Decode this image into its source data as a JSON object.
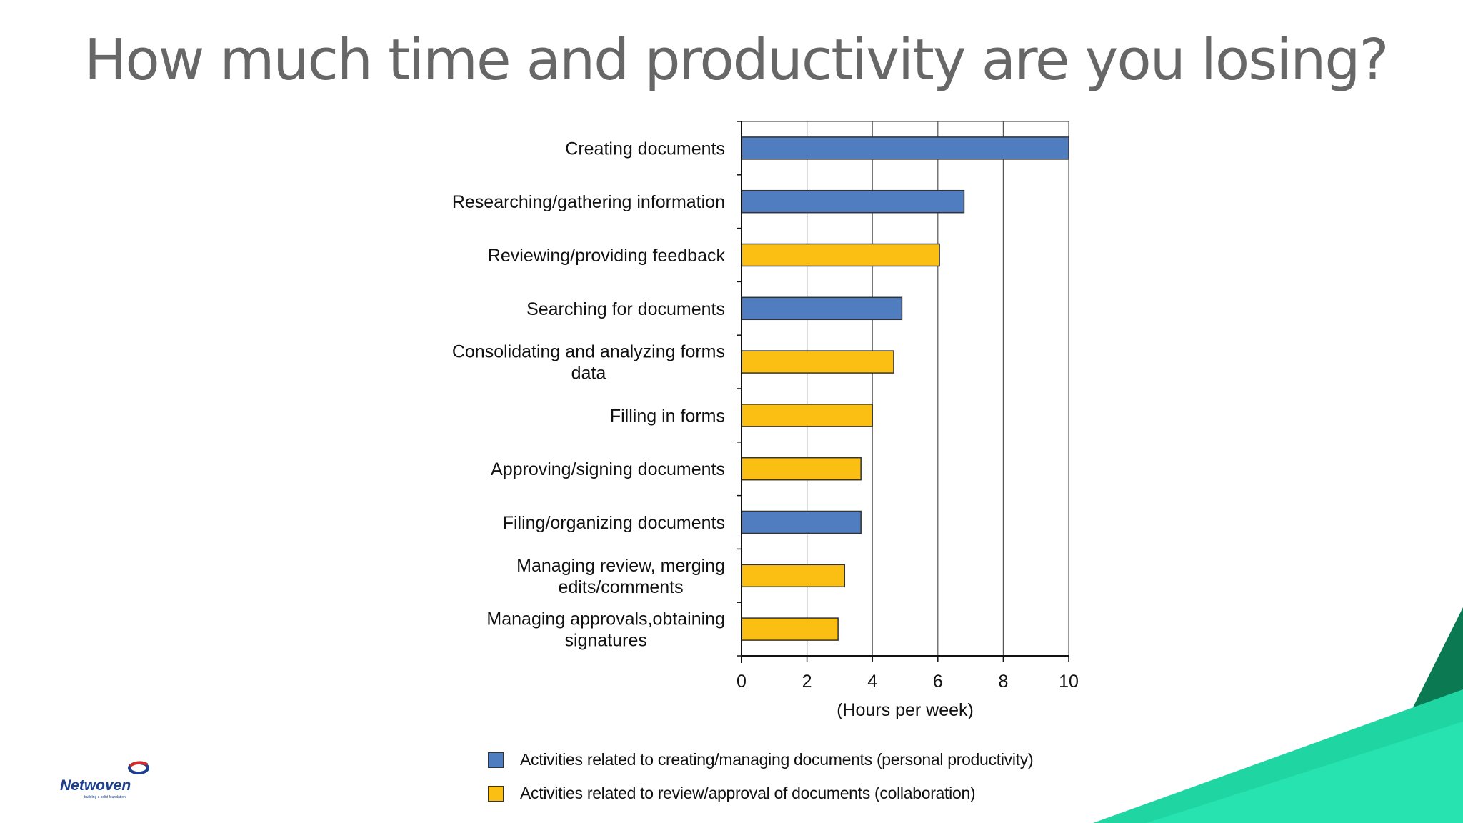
{
  "slide": {
    "title": "How much time and productivity are you losing?"
  },
  "logo": {
    "name": "Netwoven",
    "tagline": "building a solid foundation"
  },
  "colors": {
    "personal": "#4f7dbf",
    "collaboration": "#fbbf14",
    "title": "#676767",
    "accent_green": "#1fd6a2",
    "accent_dark_green": "#0b7a53"
  },
  "chart_data": {
    "type": "bar",
    "orientation": "horizontal",
    "categories": [
      [
        "Creating documents"
      ],
      [
        "Researching/gathering information"
      ],
      [
        "Reviewing/providing feedback"
      ],
      [
        "Searching for documents"
      ],
      [
        "Consolidating and analyzing forms",
        "data"
      ],
      [
        "Filling in forms"
      ],
      [
        "Approving/signing documents"
      ],
      [
        "Filing/organizing documents"
      ],
      [
        "Managing review, merging",
        "edits/comments"
      ],
      [
        "Managing approvals,obtaining",
        "signatures"
      ]
    ],
    "values": [
      10,
      6.8,
      6.05,
      4.9,
      4.65,
      4.0,
      3.65,
      3.65,
      3.15,
      2.95
    ],
    "groups": [
      "personal",
      "personal",
      "collaboration",
      "personal",
      "collaboration",
      "collaboration",
      "collaboration",
      "personal",
      "collaboration",
      "collaboration"
    ],
    "xlabel": "(Hours per week)",
    "xlim": [
      0,
      10
    ],
    "xticks": [
      0,
      2,
      4,
      6,
      8,
      10
    ],
    "grid": true,
    "legend": [
      {
        "label": "Activities related to creating/managing documents (personal productivity)",
        "group": "personal"
      },
      {
        "label": "Activities related to review/approval of documents (collaboration)",
        "group": "collaboration"
      }
    ],
    "legend_position": "bottom"
  }
}
